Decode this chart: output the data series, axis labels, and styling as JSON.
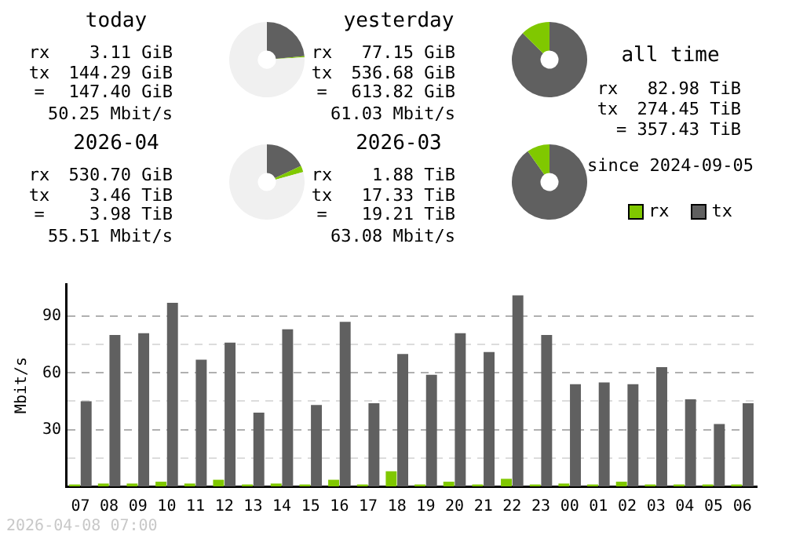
{
  "chart_data": [
    {
      "type": "donut",
      "title": "today",
      "categories": [
        null,
        null,
        null
      ],
      "values": [
        23.5,
        0.5,
        76.0
      ],
      "colors": [
        "#606060",
        "#80c800",
        "#f0f0f0"
      ],
      "annotations": [
        "rx 3.11 GiB",
        "tx 144.29 GiB",
        "= 147.40 GiB",
        "50.25 Mbit/s"
      ]
    },
    {
      "type": "donut",
      "title": "yesterday",
      "categories": [
        null,
        null
      ],
      "values": [
        87.4,
        12.6
      ],
      "colors": [
        "#606060",
        "#80c800"
      ],
      "annotations": [
        "rx 77.15 GiB",
        "tx 536.68 GiB",
        "= 613.82 GiB",
        "61.03 Mbit/s"
      ]
    },
    {
      "type": "other",
      "title": "all time",
      "annotations": [
        "rx 82.98 TiB",
        "tx 274.45 TiB",
        "= 357.43 TiB",
        "since 2024-09-05"
      ]
    },
    {
      "type": "donut",
      "title": "2026-04",
      "categories": [
        null,
        null,
        null
      ],
      "values": [
        18.0,
        2.7,
        79.3
      ],
      "colors": [
        "#606060",
        "#80c800",
        "#f0f0f0"
      ],
      "annotations": [
        "rx 530.70 GiB",
        "tx 3.46 TiB",
        "= 3.98 TiB",
        "55.51 Mbit/s"
      ]
    },
    {
      "type": "donut",
      "title": "2026-03",
      "categories": [
        null,
        null
      ],
      "values": [
        90.2,
        9.8
      ],
      "colors": [
        "#606060",
        "#80c800"
      ],
      "annotations": [
        "rx 1.88 TiB",
        "tx 17.33 TiB",
        "= 19.21 TiB",
        "63.08 Mbit/s"
      ]
    },
    {
      "type": "bar",
      "ylabel": "Mbit/s",
      "categories": [
        "07",
        "08",
        "09",
        "10",
        "11",
        "12",
        "13",
        "14",
        "15",
        "16",
        "17",
        "18",
        "19",
        "20",
        "21",
        "22",
        "23",
        "00",
        "01",
        "02",
        "03",
        "04",
        "05",
        "06"
      ],
      "series": [
        {
          "name": "rx",
          "color": "#80c800",
          "values": [
            1,
            1.5,
            1.5,
            2.5,
            1.5,
            3.5,
            1,
            1.5,
            1,
            3.5,
            1,
            8,
            1,
            2.5,
            1,
            4,
            1,
            1.5,
            1,
            2.5,
            1,
            1,
            1,
            1
          ]
        },
        {
          "name": "tx",
          "color": "#606060",
          "values": [
            45,
            80,
            81,
            97,
            67,
            76,
            39,
            83,
            43,
            87,
            44,
            70,
            59,
            81,
            71,
            101,
            80,
            54,
            55,
            54,
            63,
            46,
            33,
            44
          ]
        }
      ],
      "ylim": [
        0,
        107
      ],
      "yticks": [
        {
          "value": 15,
          "label": null
        },
        30,
        {
          "value": 45,
          "label": null
        },
        60,
        {
          "value": 75,
          "label": null
        },
        90
      ],
      "grid": "y",
      "legend": "top right",
      "annotations": [
        "2026-04-08 07:00"
      ]
    }
  ]
}
